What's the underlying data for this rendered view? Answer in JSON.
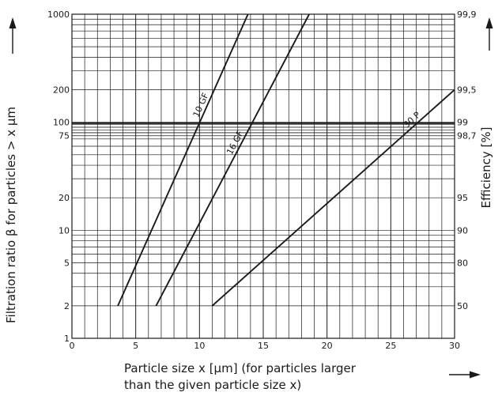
{
  "chart_data": {
    "type": "line",
    "xlabel_line1": "Particle size x [µm] (for particles larger",
    "xlabel_line2": "than the given particle size x)",
    "ylabel": "Filtration ratio β for particles > x µm",
    "y2label": "Efficiency  [%]",
    "xlim": [
      0,
      30
    ],
    "ylim": [
      1,
      1000
    ],
    "yscale": "log",
    "grid": true,
    "x_ticks": [
      0,
      5,
      10,
      15,
      20,
      25,
      30
    ],
    "y_ticks": [
      1,
      2,
      5,
      10,
      20,
      75,
      100,
      200,
      1000
    ],
    "y2_ticks": [
      {
        "beta": 2,
        "label": "50"
      },
      {
        "beta": 5,
        "label": "80"
      },
      {
        "beta": 10,
        "label": "90"
      },
      {
        "beta": 20,
        "label": "95"
      },
      {
        "beta": 75,
        "label": "98,7"
      },
      {
        "beta": 100,
        "label": "99"
      },
      {
        "beta": 200,
        "label": "99,5"
      },
      {
        "beta": 1000,
        "label": "99,9"
      }
    ],
    "series": [
      {
        "name": "10 GF",
        "x": [
          3.6,
          13.8
        ],
        "y": [
          2,
          1000
        ]
      },
      {
        "name": "16 GF",
        "x": [
          6.6,
          18.6
        ],
        "y": [
          2,
          1000
        ]
      },
      {
        "name": "30 P",
        "x": [
          11.0,
          30.0
        ],
        "y": [
          2,
          200
        ]
      }
    ]
  }
}
